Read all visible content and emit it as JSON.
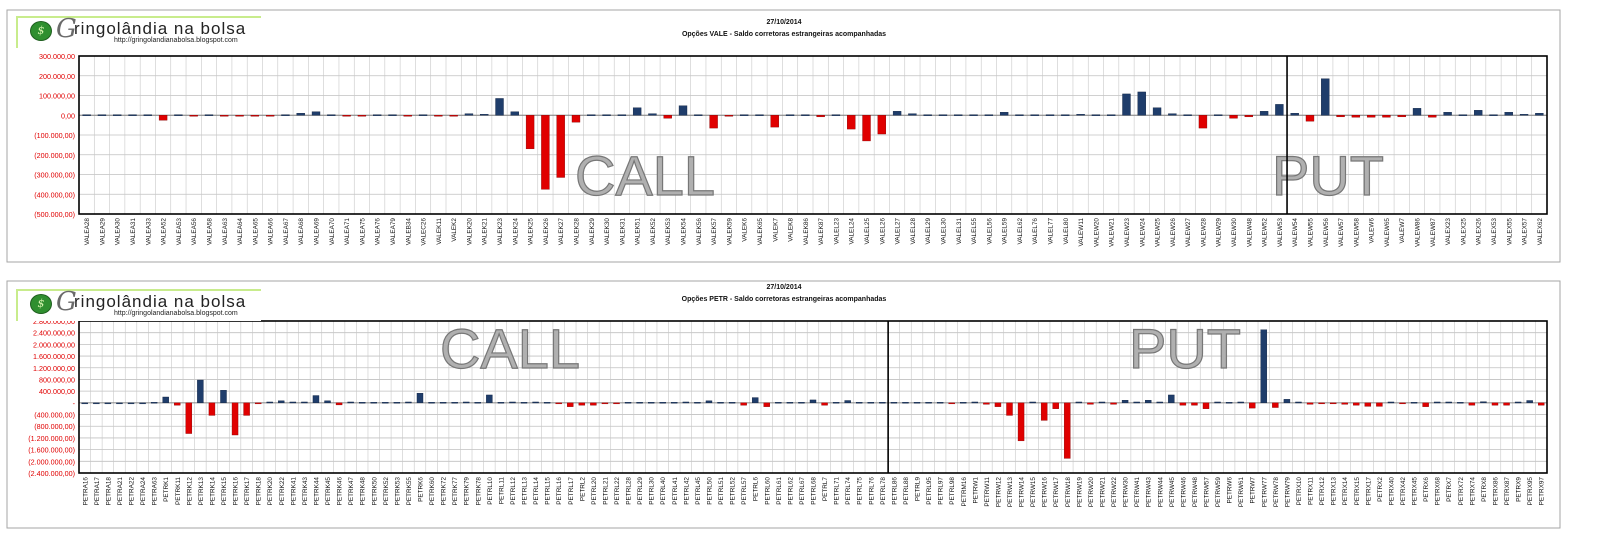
{
  "site": {
    "name": "ringolândia na bolsa",
    "initial": "G",
    "url": "http://gringolandianabolsa.blogspot.com"
  },
  "colors": {
    "positive": "#1f3d6b",
    "negative": "#e00000",
    "grid": "#b4b4b4",
    "axis_text": "#ff0000"
  },
  "chart_data": [
    {
      "type": "bar",
      "date": "27/10/2014",
      "title": "Opções VALE - Saldo corretoras estrangeiras acompanhadas",
      "section_labels": [
        "CALL",
        "PUT"
      ],
      "split_after_index": 78,
      "ylim": [
        -500000,
        300000
      ],
      "yticks": [
        "300.000,00",
        "200.000,00",
        "100.000,00",
        "0,00",
        "(100.000,00)",
        "(200.000,00)",
        "(300.000,00)",
        "(400.000,00)",
        "(500.000,00)"
      ],
      "categories": [
        "VALEA28",
        "VALEA29",
        "VALEA30",
        "VALEA31",
        "VALEA33",
        "VALEA52",
        "VALEA53",
        "VALEA56",
        "VALEA58",
        "VALEA63",
        "VALEA64",
        "VALEA65",
        "VALEA66",
        "VALEA67",
        "VALEA68",
        "VALEA69",
        "VALEA70",
        "VALEA71",
        "VALEA75",
        "VALEA76",
        "VALEA79",
        "VALEB34",
        "VALEC26",
        "VALEK11",
        "VALEK2",
        "VALEK20",
        "VALEK21",
        "VALEK23",
        "VALEK24",
        "VALEK25",
        "VALEK26",
        "VALEK27",
        "VALEK28",
        "VALEK29",
        "VALEK30",
        "VALEK31",
        "VALEK51",
        "VALEK52",
        "VALEK53",
        "VALEK54",
        "VALEK56",
        "VALEK57",
        "VALEK59",
        "VALEK6",
        "VALEK65",
        "VALEK7",
        "VALEK8",
        "VALEK86",
        "VALEK87",
        "VALEL23",
        "VALEL24",
        "VALEL25",
        "VALEL26",
        "VALEL27",
        "VALEL28",
        "VALEL29",
        "VALEL30",
        "VALEL31",
        "VALEL55",
        "VALEL56",
        "VALEL59",
        "VALEL62",
        "VALEL76",
        "VALEL77",
        "VALEL80",
        "VALEW11",
        "VALEW20",
        "VALEW21",
        "VALEW23",
        "VALEW24",
        "VALEW25",
        "VALEW26",
        "VALEW27",
        "VALEW28",
        "VALEW29",
        "VALEW30",
        "VALEW48",
        "VALEW52",
        "VALEW53",
        "VALEW54",
        "VALEW55",
        "VALEW56",
        "VALEW57",
        "VALEW58",
        "VALEW6",
        "VALEW65",
        "VALEW7",
        "VALEW86",
        "VALEW87",
        "VALEX23",
        "VALEX25",
        "VALEX26",
        "VALEX53",
        "VALEX55",
        "VALEX57",
        "VALEX62"
      ],
      "values": [
        3000,
        3000,
        3000,
        3000,
        3000,
        -25000,
        3000,
        -3000,
        3000,
        -3000,
        -3000,
        -3000,
        -3000,
        3000,
        10000,
        18000,
        3000,
        -3000,
        -3000,
        3000,
        3000,
        -3000,
        3000,
        -3000,
        -3000,
        8000,
        5000,
        85000,
        18000,
        -170000,
        -375000,
        -315000,
        -35000,
        3000,
        3000,
        3000,
        38000,
        8000,
        -15000,
        48000,
        3000,
        -65000,
        -3000,
        3000,
        3000,
        -60000,
        3000,
        3000,
        -8000,
        3000,
        -70000,
        -130000,
        -95000,
        20000,
        8000,
        3000,
        3000,
        3000,
        3000,
        3000,
        15000,
        3000,
        3000,
        3000,
        3000,
        5000,
        3000,
        3000,
        108000,
        118000,
        38000,
        8000,
        3000,
        -65000,
        3000,
        -15000,
        -8000,
        20000,
        55000,
        10000,
        -30000,
        185000,
        -8000,
        -10000,
        -10000,
        -10000,
        -8000,
        35000,
        -10000,
        15000,
        3000,
        25000,
        3000,
        15000,
        5000,
        10000
      ]
    },
    {
      "type": "bar",
      "date": "27/10/2014",
      "title": "Opções PETR - Saldo corretoras estrangeiras acompanhadas",
      "section_labels": [
        "CALL",
        "PUT"
      ],
      "split_after_index": 69,
      "ylim": [
        -2400000,
        2800000
      ],
      "yticks": [
        "2.800.000,00",
        "2.400.000,00",
        "2.000.000,00",
        "1.600.000,00",
        "1.200.000,00",
        "800.000,00",
        "400.000,00",
        "-",
        "(400.000,00)",
        "(800.000,00)",
        "(1.200.000,00)",
        "(1.600.000,00)",
        "(2.000.000,00)",
        "(2.400.000,00)"
      ],
      "categories": [
        "PETRA16",
        "PETRA17",
        "PETRA18",
        "PETRA21",
        "PETRA22",
        "PETRA24",
        "PETRA63",
        "PETRK1",
        "PETRK11",
        "PETRK12",
        "PETRK13",
        "PETRK14",
        "PETRK15",
        "PETRK16",
        "PETRK17",
        "PETRK18",
        "PETRK20",
        "PETRK22",
        "PETRK41",
        "PETRK43",
        "PETRK44",
        "PETRK45",
        "PETRK46",
        "PETRK47",
        "PETRK48",
        "PETRK50",
        "PETRK52",
        "PETRK53",
        "PETRK55",
        "PETRK6",
        "PETRK60",
        "PETRK72",
        "PETRK77",
        "PETRK79",
        "PETRK78",
        "PETRL10",
        "PETRL11",
        "PETRL12",
        "PETRL13",
        "PETRL14",
        "PETRL15",
        "PETRL16",
        "PETRL17",
        "PETRL2",
        "PETRL20",
        "PETRL21",
        "PETRL22",
        "PETRL28",
        "PETRL29",
        "PETRL30",
        "PETRL40",
        "PETRL41",
        "PETRL42",
        "PETRL45",
        "PETRL50",
        "PETRL51",
        "PETRL52",
        "PETRL57",
        "PETRL6",
        "PETRL60",
        "PETRL61",
        "PETRL62",
        "PETRL67",
        "PETRL68",
        "PETRL7",
        "PETRL71",
        "PETRL74",
        "PETRL75",
        "PETRL76",
        "PETRL78",
        "PETRL86",
        "PETRL88",
        "PETRL9",
        "PETRL95",
        "PETRL97",
        "PETRL98",
        "PETRM16",
        "PETRW1",
        "PETRW11",
        "PETRW12",
        "PETRW13",
        "PETRW14",
        "PETRW15",
        "PETRW16",
        "PETRW17",
        "PETRW18",
        "PETRW19",
        "PETRW20",
        "PETRW21",
        "PETRW22",
        "PETRW30",
        "PETRW41",
        "PETRW43",
        "PETRW44",
        "PETRW45",
        "PETRW46",
        "PETRW48",
        "PETRW57",
        "PETRW59",
        "PETRW6",
        "PETRW61",
        "PETRW7",
        "PETRW77",
        "PETRW78",
        "PETRW79",
        "PETRX10",
        "PETRX11",
        "PETRX12",
        "PETRX13",
        "PETRX14",
        "PETRX15",
        "PETRX17",
        "PETRX2",
        "PETRX40",
        "PETRX42",
        "PETRX45",
        "PETRX6",
        "PETRX68",
        "PETRX7",
        "PETRX72",
        "PETRX74",
        "PETRX8",
        "PETRX86",
        "PETRX87",
        "PETRX9",
        "PETRX95",
        "PETRX97"
      ],
      "values": [
        0,
        0,
        0,
        0,
        0,
        0,
        20000,
        200000,
        -80000,
        -1050000,
        780000,
        -430000,
        430000,
        -1100000,
        -430000,
        -30000,
        30000,
        70000,
        30000,
        30000,
        250000,
        70000,
        -70000,
        30000,
        20000,
        20000,
        20000,
        20000,
        30000,
        330000,
        20000,
        20000,
        20000,
        30000,
        20000,
        270000,
        20000,
        30000,
        20000,
        30000,
        20000,
        -30000,
        -130000,
        -80000,
        -80000,
        -30000,
        -20000,
        20000,
        20000,
        20000,
        20000,
        20000,
        30000,
        20000,
        70000,
        20000,
        20000,
        -80000,
        180000,
        -130000,
        20000,
        20000,
        20000,
        100000,
        -80000,
        20000,
        80000,
        20000,
        20000,
        20000,
        20000,
        20000,
        20000,
        20000,
        20000,
        -30000,
        20000,
        30000,
        -50000,
        -130000,
        -430000,
        -1300000,
        30000,
        -600000,
        -200000,
        -1900000,
        30000,
        -50000,
        30000,
        -50000,
        90000,
        30000,
        90000,
        30000,
        270000,
        -80000,
        -80000,
        -200000,
        30000,
        20000,
        30000,
        -180000,
        2500000,
        -160000,
        120000,
        30000,
        -50000,
        -30000,
        -30000,
        -50000,
        -80000,
        -120000,
        -120000,
        30000,
        -30000,
        20000,
        -130000,
        30000,
        30000,
        20000,
        -80000,
        40000,
        -80000,
        -80000,
        30000,
        80000,
        -80000
      ]
    }
  ]
}
